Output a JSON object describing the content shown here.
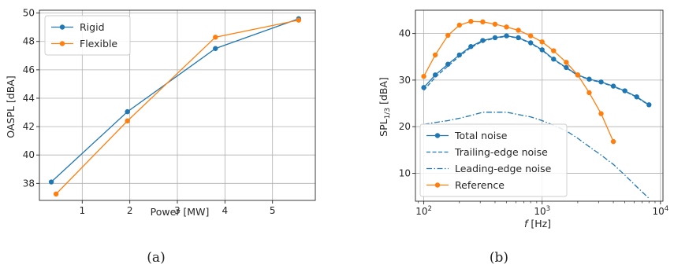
{
  "colors": {
    "blue": "#1f77b4",
    "orange": "#ff7f0e",
    "grid": "#b0b0b0"
  },
  "chart_data": [
    {
      "type": "line",
      "caption": "(a)",
      "xlabel": "Power [MW]",
      "ylabel": "OASPL [dBA]",
      "xlim": [
        0.1,
        5.9
      ],
      "ylim": [
        36.8,
        50.2
      ],
      "xticks": [
        1,
        2,
        3,
        4,
        5
      ],
      "yticks": [
        38,
        40,
        42,
        44,
        46,
        48,
        50
      ],
      "grid": true,
      "legend_position": "upper-left",
      "series": [
        {
          "name": "Rigid",
          "color": "#1f77b4",
          "style": "solid",
          "marker": true,
          "x": [
            0.35,
            1.95,
            3.8,
            5.55
          ],
          "y": [
            38.1,
            43.05,
            47.5,
            49.6
          ]
        },
        {
          "name": "Flexible",
          "color": "#ff7f0e",
          "style": "solid",
          "marker": true,
          "x": [
            0.45,
            1.95,
            3.8,
            5.55
          ],
          "y": [
            37.25,
            42.4,
            48.3,
            49.5
          ]
        }
      ]
    },
    {
      "type": "line",
      "caption": "(b)",
      "xlabel": "f [Hz]",
      "ylabel": "SPL1/3 [dBA]",
      "xscale": "log",
      "xlim": [
        85,
        10500
      ],
      "ylim": [
        4,
        45
      ],
      "xticks": [
        100,
        1000,
        10000
      ],
      "xtick_labels": [
        "10^2",
        "10^3",
        "10^4"
      ],
      "yticks": [
        10,
        20,
        30,
        40
      ],
      "grid": true,
      "legend_position": "lower-left",
      "series": [
        {
          "name": "Total noise",
          "color": "#1f77b4",
          "style": "solid",
          "marker": true,
          "x": [
            100,
            125,
            160,
            200,
            250,
            315,
            400,
            500,
            630,
            800,
            1000,
            1250,
            1600,
            2000,
            2500,
            3150,
            4000,
            5000,
            6300,
            8000
          ],
          "y": [
            28.4,
            31.1,
            33.4,
            35.4,
            37.2,
            38.5,
            39.1,
            39.5,
            39.1,
            38.0,
            36.5,
            34.5,
            32.7,
            31.1,
            30.2,
            29.6,
            28.7,
            27.7,
            26.4,
            24.7
          ]
        },
        {
          "name": "Trailing-edge noise",
          "color": "#1f77b4",
          "style": "dashed",
          "marker": false,
          "x": [
            100,
            125,
            160,
            200,
            250,
            315,
            400,
            500,
            630,
            800,
            1000,
            1250,
            1600,
            2000,
            2500,
            3150,
            4000,
            5000,
            6300,
            8000
          ],
          "y": [
            27.8,
            30.6,
            33.0,
            35.1,
            37.0,
            38.3,
            39.0,
            39.4,
            39.0,
            37.9,
            36.4,
            34.4,
            32.6,
            31.0,
            30.1,
            29.5,
            28.6,
            27.6,
            26.3,
            24.6
          ]
        },
        {
          "name": "Leading-edge noise",
          "color": "#1f77b4",
          "style": "dashdot",
          "marker": false,
          "x": [
            100,
            125,
            160,
            200,
            250,
            315,
            400,
            500,
            630,
            800,
            1000,
            1250,
            1600,
            2000,
            2500,
            3150,
            4000,
            5000,
            6300,
            8000
          ],
          "y": [
            20.5,
            20.9,
            21.3,
            21.8,
            22.4,
            23.1,
            23.1,
            23.1,
            22.6,
            22.1,
            21.3,
            20.3,
            19.1,
            17.5,
            15.7,
            13.9,
            11.9,
            9.6,
            7.1,
            4.6
          ]
        },
        {
          "name": "Reference",
          "color": "#ff7f0e",
          "style": "solid",
          "marker": true,
          "x": [
            100,
            125,
            160,
            200,
            250,
            315,
            400,
            500,
            630,
            800,
            1000,
            1250,
            1600,
            2000,
            2500,
            3150,
            4000
          ],
          "y": [
            30.8,
            35.4,
            39.6,
            41.8,
            42.6,
            42.5,
            42.0,
            41.4,
            40.7,
            39.5,
            38.2,
            36.3,
            33.8,
            31.1,
            27.3,
            22.8,
            16.8
          ]
        }
      ]
    }
  ]
}
